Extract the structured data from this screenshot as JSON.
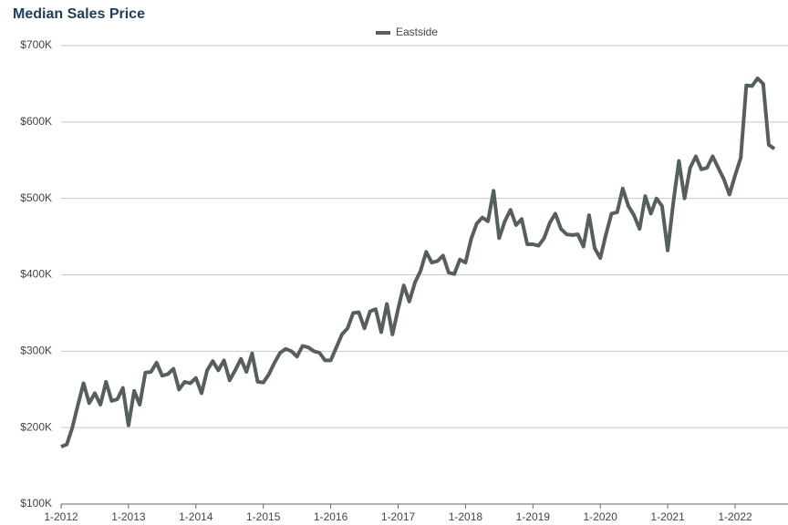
{
  "chart_data": {
    "type": "line",
    "title": "Median Sales Price",
    "categories": [
      "1-2012",
      null,
      null,
      null,
      null,
      null,
      null,
      null,
      null,
      null,
      null,
      null,
      "1-2013",
      null,
      null,
      null,
      null,
      null,
      null,
      null,
      null,
      null,
      null,
      null,
      "1-2014",
      null,
      null,
      null,
      null,
      null,
      null,
      null,
      null,
      null,
      null,
      null,
      "1-2015",
      null,
      null,
      null,
      null,
      null,
      null,
      null,
      null,
      null,
      null,
      null,
      "1-2016",
      null,
      null,
      null,
      null,
      null,
      null,
      null,
      null,
      null,
      null,
      null,
      "1-2017",
      null,
      null,
      null,
      null,
      null,
      null,
      null,
      null,
      null,
      null,
      null,
      "1-2018",
      null,
      null,
      null,
      null,
      null,
      null,
      null,
      null,
      null,
      null,
      null,
      "1-2019",
      null,
      null,
      null,
      null,
      null,
      null,
      null,
      null,
      null,
      null,
      null,
      "1-2020",
      null,
      null,
      null,
      null,
      null,
      null,
      null,
      null,
      null,
      null,
      null,
      "1-2021",
      null,
      null,
      null,
      null,
      null,
      null,
      null,
      null,
      null,
      null,
      null,
      "1-2022",
      null,
      null,
      null,
      null,
      null,
      null,
      null
    ],
    "series": [
      {
        "name": "Eastside",
        "color": "#555f5c",
        "values": [
          175000,
          178000,
          200000,
          230000,
          258000,
          232000,
          245000,
          230000,
          260000,
          235000,
          237000,
          252000,
          203000,
          248000,
          230000,
          272000,
          273000,
          285000,
          268000,
          270000,
          277000,
          250000,
          260000,
          258000,
          265000,
          245000,
          275000,
          287000,
          275000,
          288000,
          262000,
          275000,
          290000,
          273000,
          297000,
          260000,
          259000,
          270000,
          285000,
          298000,
          303000,
          300000,
          293000,
          307000,
          305000,
          300000,
          298000,
          288000,
          288000,
          305000,
          322000,
          330000,
          350000,
          351000,
          330000,
          352000,
          355000,
          325000,
          362000,
          322000,
          355000,
          386000,
          365000,
          390000,
          405000,
          430000,
          416000,
          418000,
          425000,
          403000,
          401000,
          420000,
          416000,
          447000,
          467000,
          475000,
          470000,
          510000,
          448000,
          470000,
          485000,
          465000,
          473000,
          440000,
          440000,
          438000,
          448000,
          468000,
          480000,
          460000,
          453000,
          452000,
          453000,
          437000,
          478000,
          435000,
          422000,
          453000,
          480000,
          482000,
          513000,
          490000,
          478000,
          460000,
          503000,
          480000,
          500000,
          490000,
          432000,
          495000,
          549000,
          500000,
          540000,
          555000,
          538000,
          540000,
          555000,
          540000,
          525000,
          505000,
          530000,
          553000,
          648000,
          647000,
          657000,
          650000,
          570000,
          565000
        ]
      }
    ],
    "ylim": [
      100000,
      700000
    ],
    "yticks": [
      {
        "value": 100000,
        "label": "$100K"
      },
      {
        "value": 200000,
        "label": "$200K"
      },
      {
        "value": 300000,
        "label": "$300K"
      },
      {
        "value": 400000,
        "label": "$400K"
      },
      {
        "value": 500000,
        "label": "$500K"
      },
      {
        "value": 600000,
        "label": "$600K"
      },
      {
        "value": 700000,
        "label": "$700K"
      }
    ],
    "grid": true,
    "legend": "top"
  }
}
